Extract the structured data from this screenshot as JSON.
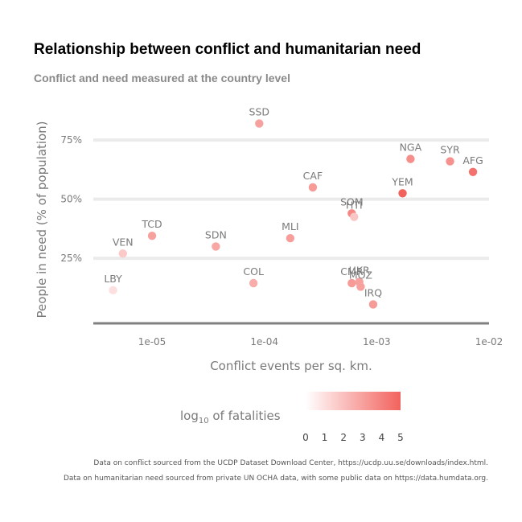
{
  "chart_data": {
    "type": "scatter",
    "title": "Relationship between conflict and humanitarian need",
    "subtitle": "Conflict and need measured at the country level",
    "xlabel": "Conflict events per sq. km.",
    "ylabel": "People in need (% of population)",
    "x_scale": "log10",
    "xlim": [
      3e-06,
      0.01
    ],
    "ylim": [
      -0.025,
      0.9
    ],
    "x_ticks": [
      {
        "value": 1e-05,
        "label": "1e-05"
      },
      {
        "value": 0.0001,
        "label": "1e-04"
      },
      {
        "value": 0.001,
        "label": "1e-03"
      },
      {
        "value": 0.01,
        "label": "1e-02"
      }
    ],
    "y_ticks": [
      {
        "value": 0.25,
        "label": "25%"
      },
      {
        "value": 0.5,
        "label": "50%"
      },
      {
        "value": 0.75,
        "label": "75%"
      }
    ],
    "grid": "horizontal",
    "color_scale": {
      "title_main": "log",
      "title_sub": "10",
      "title_rest": " of fatalities",
      "low_color": "#ffffff",
      "high_color": "#f2625d",
      "min": 0,
      "max": 5,
      "ticks": [
        "0",
        "1",
        "2",
        "3",
        "4",
        "5"
      ]
    },
    "points": [
      {
        "label": "SSD",
        "x": 9e-05,
        "y": 0.82,
        "fatalities_log10": 3.0
      },
      {
        "label": "NGA",
        "x": 0.002,
        "y": 0.67,
        "fatalities_log10": 3.6
      },
      {
        "label": "SYR",
        "x": 0.0045,
        "y": 0.66,
        "fatalities_log10": 3.5
      },
      {
        "label": "AFG",
        "x": 0.0072,
        "y": 0.615,
        "fatalities_log10": 4.5
      },
      {
        "label": "CAF",
        "x": 0.00027,
        "y": 0.55,
        "fatalities_log10": 3.2
      },
      {
        "label": "YEM",
        "x": 0.0017,
        "y": 0.525,
        "fatalities_log10": 5.0
      },
      {
        "label": "SOM",
        "x": 0.0006,
        "y": 0.44,
        "fatalities_log10": 3.8
      },
      {
        "label": "HTI",
        "x": 0.00063,
        "y": 0.425,
        "fatalities_log10": 1.8
      },
      {
        "label": "TCD",
        "x": 1e-05,
        "y": 0.345,
        "fatalities_log10": 3.0
      },
      {
        "label": "MLI",
        "x": 0.00017,
        "y": 0.335,
        "fatalities_log10": 3.1
      },
      {
        "label": "SDN",
        "x": 3.7e-05,
        "y": 0.3,
        "fatalities_log10": 2.8
      },
      {
        "label": "VEN",
        "x": 5.5e-06,
        "y": 0.27,
        "fatalities_log10": 1.7
      },
      {
        "label": "COL",
        "x": 8e-05,
        "y": 0.145,
        "fatalities_log10": 2.6
      },
      {
        "label": "CMR",
        "x": 0.0006,
        "y": 0.145,
        "fatalities_log10": 3.2
      },
      {
        "label": "UKR",
        "x": 0.0007,
        "y": 0.15,
        "fatalities_log10": 3.0
      },
      {
        "label": "MOZ",
        "x": 0.00072,
        "y": 0.13,
        "fatalities_log10": 3.0
      },
      {
        "label": "LBY",
        "x": 4.5e-06,
        "y": 0.115,
        "fatalities_log10": 1.0
      },
      {
        "label": "IRQ",
        "x": 0.00093,
        "y": 0.055,
        "fatalities_log10": 3.2
      }
    ]
  },
  "caption": {
    "line1": "Data on conflict sourced from the UCDP Dataset Download Center, https://ucdp.uu.se/downloads/index.html.",
    "line2": "Data on humanitarian need sourced from private UN OCHA data, with some public data on https://data.humdata.org."
  }
}
